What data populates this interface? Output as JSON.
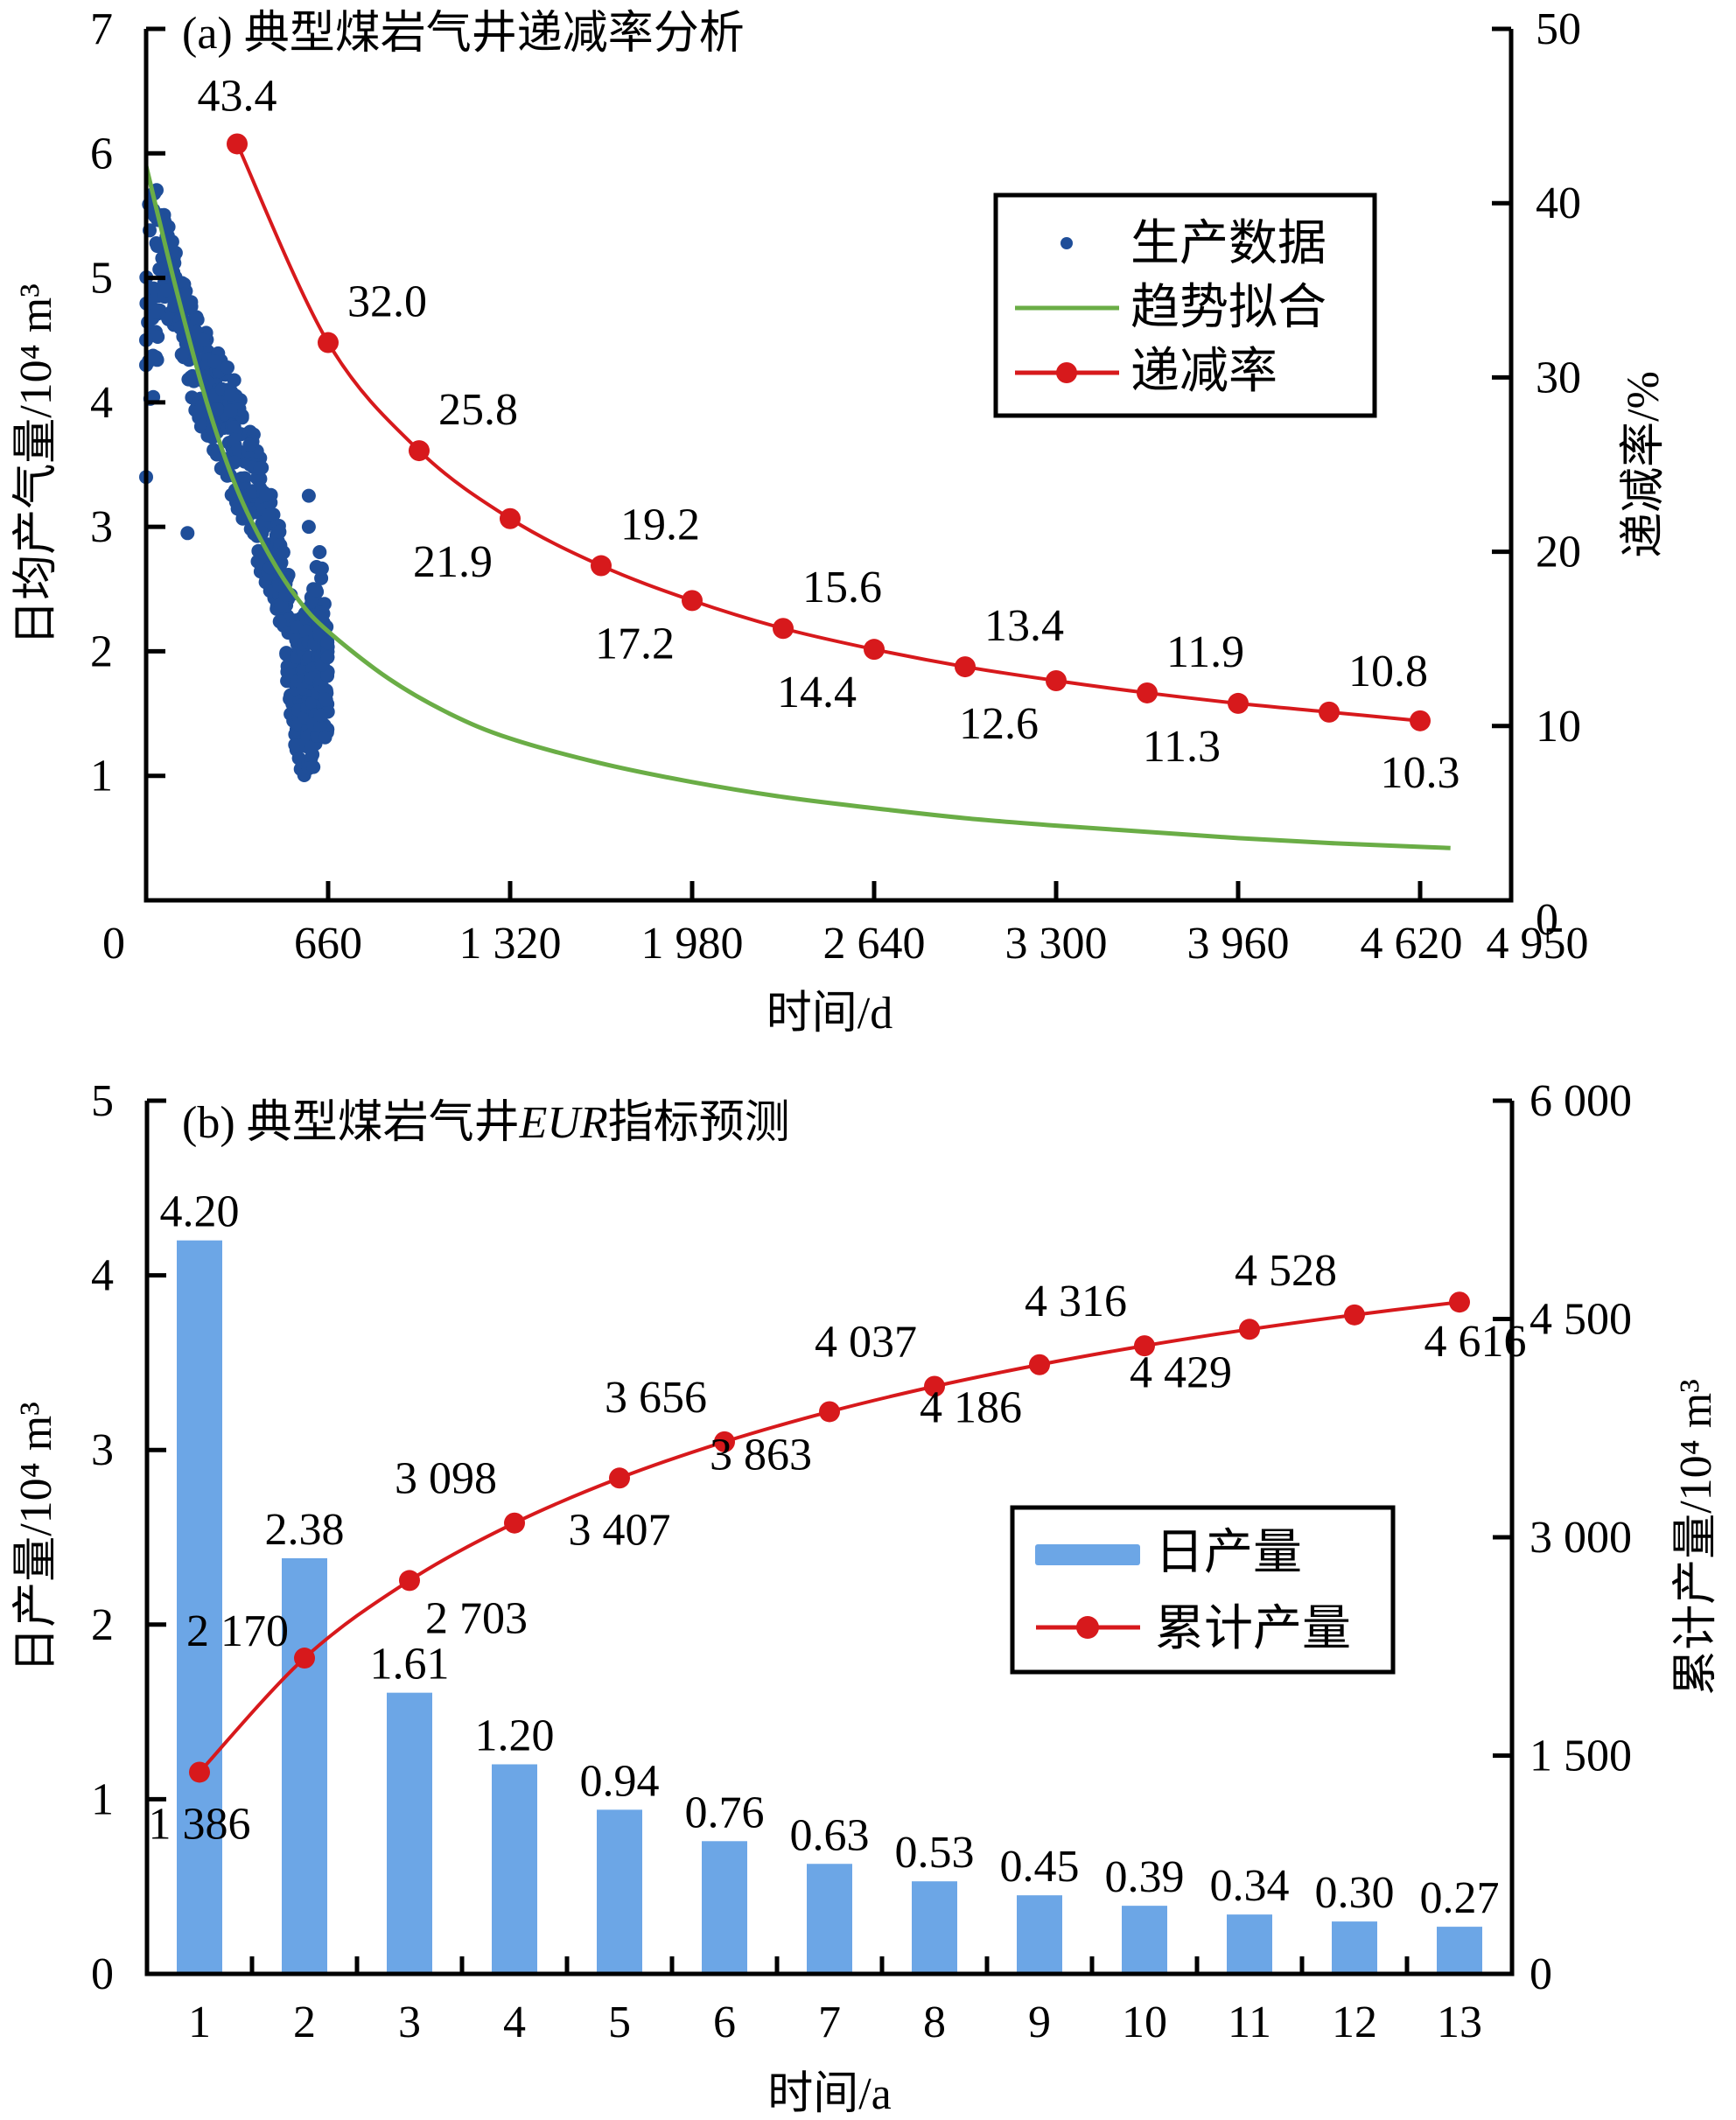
{
  "colors": {
    "scatter": "#1f4e99",
    "fit": "#6aad46",
    "decline": "#d7191c",
    "bar": "#6ca6e6",
    "cumulative": "#d7191c",
    "axis": "#000000"
  },
  "chart_data": [
    {
      "id": "a",
      "type": "scatter",
      "title": "(a) 典型煤岩气井递减率分析",
      "xlabel": "时间/d",
      "ylabel": "日均产气量/10⁴ m³",
      "y2label": "递减率/%",
      "xlim": [
        0,
        4950
      ],
      "ylim": [
        0,
        7
      ],
      "y2lim": [
        0,
        50
      ],
      "x_ticks": [
        0,
        660,
        1320,
        1980,
        2640,
        3300,
        3960,
        4620,
        4950
      ],
      "x_tick_labels": [
        "0",
        "660",
        "1 320",
        "1 980",
        "2 640",
        "3 300",
        "3 960",
        "4 620",
        "4 950"
      ],
      "y_ticks": [
        1,
        2,
        3,
        4,
        5,
        6,
        7
      ],
      "y_tick_labels": [
        "1",
        "2",
        "3",
        "4",
        "5",
        "6",
        "7"
      ],
      "y2_ticks": [
        0,
        10,
        20,
        30,
        40,
        50
      ],
      "y2_tick_labels": [
        "0",
        "10",
        "20",
        "30",
        "40",
        "50"
      ],
      "legend": {
        "position": "top-right",
        "entries": [
          "生产数据",
          "趋势拟合",
          "递减率"
        ]
      },
      "series": [
        {
          "name": "生产数据",
          "kind": "scatter",
          "axis": "left",
          "envelope": [
            {
              "x": 0,
              "lo": 3.4,
              "hi": 5.9
            },
            {
              "x": 60,
              "lo": 4.8,
              "hi": 5.6
            },
            {
              "x": 120,
              "lo": 4.4,
              "hi": 5.1
            },
            {
              "x": 180,
              "lo": 3.9,
              "hi": 4.7
            },
            {
              "x": 240,
              "lo": 3.6,
              "hi": 4.5
            },
            {
              "x": 300,
              "lo": 3.3,
              "hi": 4.3
            },
            {
              "x": 360,
              "lo": 3.0,
              "hi": 4.0
            },
            {
              "x": 420,
              "lo": 2.6,
              "hi": 3.5
            },
            {
              "x": 480,
              "lo": 2.3,
              "hi": 3.1
            },
            {
              "x": 540,
              "lo": 1.2,
              "hi": 2.4
            },
            {
              "x": 570,
              "lo": 0.95,
              "hi": 2.3
            },
            {
              "x": 600,
              "lo": 1.0,
              "hi": 2.5
            },
            {
              "x": 630,
              "lo": 1.3,
              "hi": 2.9
            },
            {
              "x": 660,
              "lo": 1.3,
              "hi": 2.2
            }
          ],
          "outliers": [
            [
              0,
              3.4
            ],
            [
              0,
              4.3
            ],
            [
              0,
              4.5
            ],
            [
              150,
              2.95
            ],
            [
              320,
              3.8
            ],
            [
              320,
              3.7
            ],
            [
              420,
              2.95
            ],
            [
              420,
              2.8
            ],
            [
              590,
              3.25
            ],
            [
              590,
              3.0
            ]
          ]
        },
        {
          "name": "趋势拟合",
          "kind": "line",
          "axis": "left",
          "points": [
            [
              0,
              5.9
            ],
            [
              110,
              4.9
            ],
            [
              220,
              4.0
            ],
            [
              330,
              3.3
            ],
            [
              440,
              2.8
            ],
            [
              550,
              2.42
            ],
            [
              660,
              2.16
            ],
            [
              880,
              1.78
            ],
            [
              1100,
              1.5
            ],
            [
              1320,
              1.3
            ],
            [
              1650,
              1.1
            ],
            [
              1980,
              0.95
            ],
            [
              2310,
              0.83
            ],
            [
              2640,
              0.74
            ],
            [
              2970,
              0.66
            ],
            [
              3300,
              0.6
            ],
            [
              3630,
              0.55
            ],
            [
              3960,
              0.5
            ],
            [
              4290,
              0.46
            ],
            [
              4620,
              0.43
            ],
            [
              4730,
              0.42
            ]
          ]
        },
        {
          "name": "递减率",
          "kind": "line+marker",
          "axis": "right",
          "x": [
            330,
            660,
            990,
            1320,
            1650,
            1980,
            2310,
            2640,
            2970,
            3300,
            3630,
            3960,
            4290,
            4620
          ],
          "values": [
            43.4,
            32.0,
            25.8,
            21.9,
            19.2,
            17.2,
            15.6,
            14.4,
            13.4,
            12.6,
            11.9,
            11.3,
            10.8,
            10.3
          ],
          "labels": [
            "43.4",
            "32.0",
            "25.8",
            "21.9",
            "19.2",
            "17.2",
            "15.6",
            "14.4",
            "13.4",
            "12.6",
            "11.9",
            "11.3",
            "10.8",
            "10.3"
          ],
          "label_side": [
            "above",
            "above-right",
            "above-right",
            "below-left",
            "above-right",
            "below-left",
            "above-right",
            "below-left",
            "above-right",
            "below-left",
            "above-right",
            "below-left",
            "above-right",
            "below"
          ]
        }
      ]
    },
    {
      "id": "b",
      "type": "bar",
      "title_prefix": "(b) 典型煤岩气井",
      "title_italic": "EUR",
      "title_suffix": "指标预测",
      "xlabel": "时间/a",
      "ylabel": "日产量/10⁴ m³",
      "y2label": "累计产量/10⁴ m³",
      "categories": [
        "1",
        "2",
        "3",
        "4",
        "5",
        "6",
        "7",
        "8",
        "9",
        "10",
        "11",
        "12",
        "13"
      ],
      "ylim": [
        0,
        5
      ],
      "y2lim": [
        0,
        6000
      ],
      "y_ticks": [
        0,
        1,
        2,
        3,
        4,
        5
      ],
      "y_tick_labels": [
        "0",
        "1",
        "2",
        "3",
        "4",
        "5"
      ],
      "y2_ticks": [
        0,
        1500,
        3000,
        4500,
        6000
      ],
      "y2_tick_labels": [
        "0",
        "1 500",
        "3 000",
        "4 500",
        "6 000"
      ],
      "legend": {
        "position": "center-right",
        "entries": [
          "日产量",
          "累计产量"
        ]
      },
      "series": [
        {
          "name": "日产量",
          "kind": "bar",
          "axis": "left",
          "values": [
            4.2,
            2.38,
            1.61,
            1.2,
            0.94,
            0.76,
            0.63,
            0.53,
            0.45,
            0.39,
            0.34,
            0.3,
            0.27
          ],
          "labels": [
            "4.20",
            "2.38",
            "1.61",
            "1.20",
            "0.94",
            "0.76",
            "0.63",
            "0.53",
            "0.45",
            "0.39",
            "0.34",
            "0.30",
            "0.27"
          ]
        },
        {
          "name": "累计产量",
          "kind": "line+marker",
          "axis": "right",
          "values": [
            1386,
            2170,
            2703,
            3098,
            3407,
            3656,
            3863,
            4037,
            4186,
            4316,
            4429,
            4528,
            4616
          ],
          "labels": [
            "1 386",
            "2 170",
            "2 703",
            "3 098",
            "3 407",
            "3 656",
            "3 863",
            "4 037",
            "4 186",
            "4 316",
            "4 429",
            "4 528",
            "4 616"
          ],
          "label_side": [
            "below",
            "left",
            "below-right",
            "above-left",
            "below",
            "above-left",
            "below-left",
            "above-left",
            "below-left",
            "above-left",
            "below-left",
            "above-left",
            "below"
          ]
        }
      ]
    }
  ]
}
